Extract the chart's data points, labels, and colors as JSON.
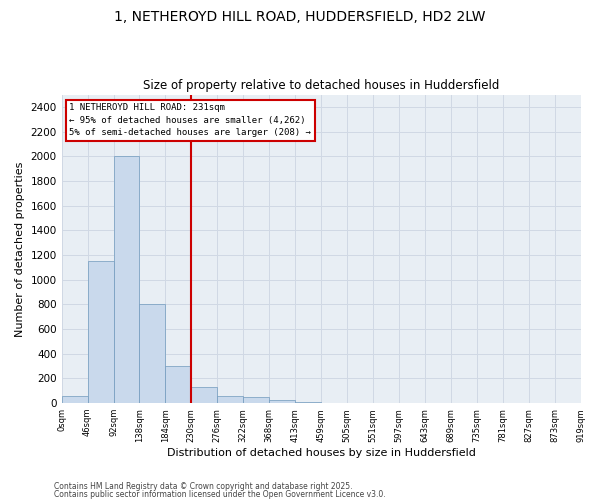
{
  "title_line1": "1, NETHEROYD HILL ROAD, HUDDERSFIELD, HD2 2LW",
  "title_line2": "Size of property relative to detached houses in Huddersfield",
  "xlabel": "Distribution of detached houses by size in Huddersfield",
  "ylabel": "Number of detached properties",
  "footer_line1": "Contains HM Land Registry data © Crown copyright and database right 2025.",
  "footer_line2": "Contains public sector information licensed under the Open Government Licence v3.0.",
  "bin_labels": [
    "0sqm",
    "46sqm",
    "92sqm",
    "138sqm",
    "184sqm",
    "230sqm",
    "276sqm",
    "322sqm",
    "368sqm",
    "413sqm",
    "459sqm",
    "505sqm",
    "551sqm",
    "597sqm",
    "643sqm",
    "689sqm",
    "735sqm",
    "781sqm",
    "827sqm",
    "873sqm",
    "919sqm"
  ],
  "bar_values": [
    55,
    1150,
    2000,
    800,
    300,
    130,
    60,
    50,
    25,
    5,
    0,
    0,
    0,
    0,
    0,
    0,
    0,
    0,
    0,
    0
  ],
  "bar_color": "#c9d9ec",
  "bar_edge_color": "#7099bc",
  "grid_color": "#d0d8e4",
  "bg_color": "#e8eef4",
  "vline_color": "#cc0000",
  "annotation_text": "1 NETHEROYD HILL ROAD: 231sqm\n← 95% of detached houses are smaller (4,262)\n5% of semi-detached houses are larger (208) →",
  "annotation_box_color": "#cc0000",
  "ylim": [
    0,
    2500
  ],
  "yticks": [
    0,
    200,
    400,
    600,
    800,
    1000,
    1200,
    1400,
    1600,
    1800,
    2000,
    2200,
    2400
  ]
}
